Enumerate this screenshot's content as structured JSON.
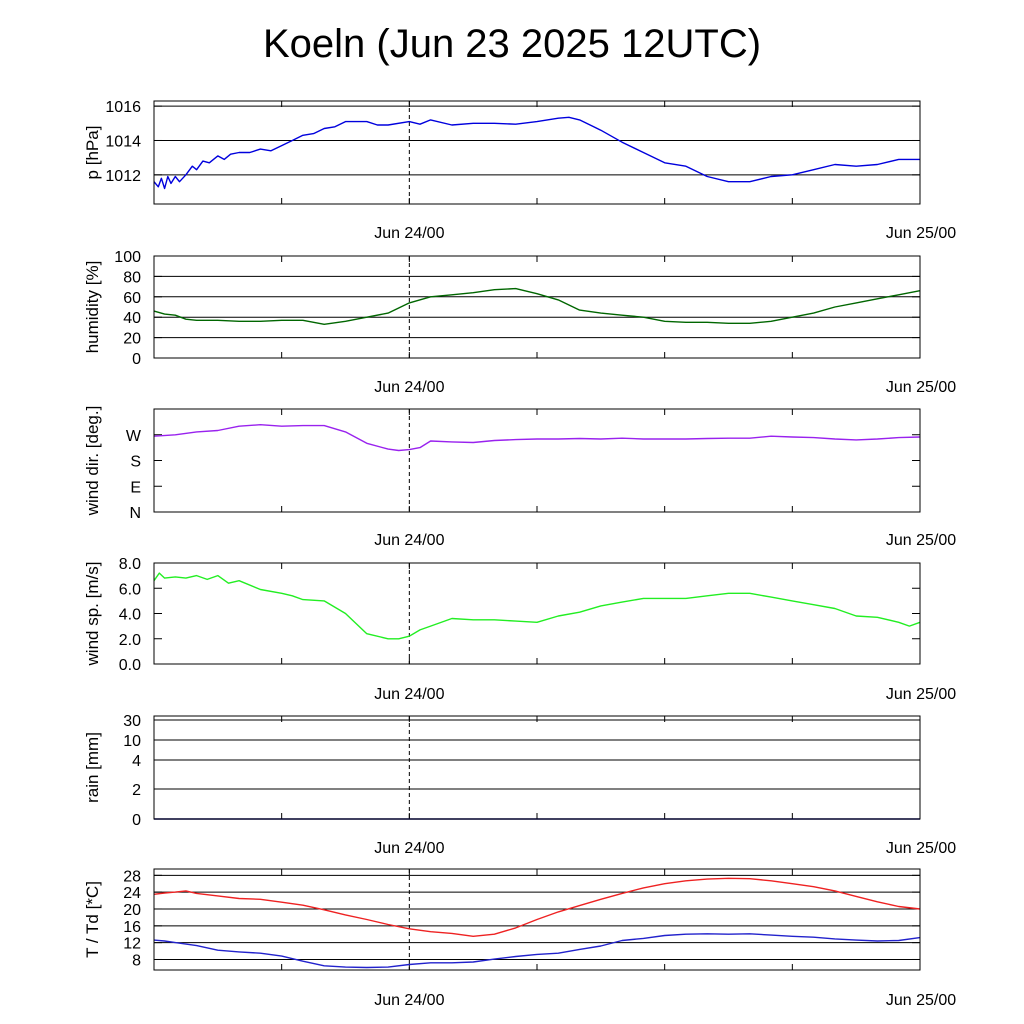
{
  "title": "Koeln (Jun 23 2025 12UTC)",
  "x_tick_labels": [
    "Jun 24/00",
    "Jun 25/00"
  ],
  "chart_data": [
    {
      "type": "line",
      "ylabel": "p [hPa]",
      "x_unit": "hours since Jun 23 12UTC",
      "xlim": [
        0,
        36
      ],
      "ylim": [
        1010.3,
        1016.3
      ],
      "yticks": [
        1012,
        1014,
        1016
      ],
      "yticklabels": [
        "1012",
        "1014",
        "1016"
      ],
      "ygrid": [
        1012,
        1014,
        1016
      ],
      "series": [
        {
          "color": "#0000dd",
          "x": [
            0,
            0.2,
            0.35,
            0.5,
            0.65,
            0.8,
            1.0,
            1.2,
            1.5,
            1.8,
            2.0,
            2.3,
            2.6,
            3.0,
            3.3,
            3.6,
            4.0,
            4.5,
            5,
            5.5,
            6,
            6.5,
            7,
            7.5,
            8,
            8.5,
            9,
            10,
            10.5,
            11,
            12,
            12.5,
            13,
            14,
            15,
            16,
            17,
            18,
            19,
            19.5,
            20,
            21,
            22,
            23,
            24,
            25,
            26,
            27,
            28,
            29,
            30,
            31,
            32,
            33,
            34,
            35,
            35.5,
            36
          ],
          "values": [
            1011.6,
            1011.3,
            1011.8,
            1011.2,
            1011.9,
            1011.5,
            1011.9,
            1011.6,
            1012.0,
            1012.5,
            1012.3,
            1012.8,
            1012.7,
            1013.1,
            1012.9,
            1013.2,
            1013.3,
            1013.3,
            1013.5,
            1013.4,
            1013.7,
            1014.0,
            1014.3,
            1014.4,
            1014.7,
            1014.8,
            1015.1,
            1015.1,
            1014.9,
            1014.9,
            1015.1,
            1014.95,
            1015.2,
            1014.9,
            1015.0,
            1015.0,
            1014.95,
            1015.1,
            1015.3,
            1015.35,
            1015.2,
            1014.6,
            1013.9,
            1013.3,
            1012.7,
            1012.5,
            1011.9,
            1011.6,
            1011.6,
            1011.9,
            1012.0,
            1012.3,
            1012.6,
            1012.5,
            1012.6,
            1012.9,
            1012.9,
            1012.9
          ]
        }
      ]
    },
    {
      "type": "line",
      "ylabel": "humidity [%]",
      "x_unit": "hours since Jun 23 12UTC",
      "xlim": [
        0,
        36
      ],
      "ylim": [
        0,
        100
      ],
      "yticks": [
        0,
        20,
        40,
        60,
        80,
        100
      ],
      "yticklabels": [
        "0",
        "20",
        "40",
        "60",
        "80",
        "100"
      ],
      "ygrid": [
        20,
        40,
        60,
        80,
        100
      ],
      "series": [
        {
          "color": "#006600",
          "x": [
            0,
            0.5,
            1,
            1.5,
            2,
            3,
            4,
            5,
            6,
            7,
            8,
            9,
            10,
            11,
            12,
            13,
            14,
            15,
            16,
            17,
            18,
            19,
            20,
            21,
            22,
            23,
            24,
            25,
            26,
            27,
            28,
            29,
            30,
            31,
            32,
            33,
            34,
            35,
            36
          ],
          "values": [
            46,
            43,
            42,
            38,
            37,
            37,
            36,
            36,
            37,
            37,
            33,
            36,
            40,
            44,
            54,
            60,
            62,
            64,
            67,
            68,
            63,
            57,
            47,
            44,
            42,
            40,
            36,
            35,
            35,
            34,
            34,
            36,
            40,
            44,
            50,
            54,
            58,
            62,
            66
          ]
        }
      ]
    },
    {
      "type": "line",
      "ylabel": "wind dir. [deg.]",
      "x_unit": "hours since Jun 23 12UTC",
      "xlim": [
        0,
        36
      ],
      "ylim": [
        0,
        360
      ],
      "yticks": [
        0,
        90,
        180,
        270
      ],
      "yticklabels": [
        "N",
        "E",
        "S",
        "W"
      ],
      "ygrid": [],
      "series": [
        {
          "color": "#9922ee",
          "x": [
            0,
            1,
            2,
            3,
            4,
            5,
            6,
            7,
            8,
            9,
            10,
            11,
            11.5,
            12,
            12.5,
            13,
            14,
            15,
            16,
            17,
            18,
            19,
            20,
            21,
            22,
            23,
            24,
            25,
            26,
            27,
            28,
            29,
            30,
            31,
            32,
            33,
            34,
            35,
            36
          ],
          "values": [
            265,
            270,
            280,
            285,
            300,
            305,
            300,
            302,
            302,
            280,
            240,
            220,
            215,
            218,
            225,
            248,
            245,
            243,
            250,
            253,
            255,
            255,
            257,
            255,
            258,
            255,
            255,
            255,
            257,
            258,
            258,
            265,
            262,
            260,
            255,
            252,
            255,
            260,
            262
          ]
        }
      ]
    },
    {
      "type": "line",
      "ylabel": "wind sp. [m/s]",
      "x_unit": "hours since Jun 23 12UTC",
      "xlim": [
        0,
        36
      ],
      "ylim": [
        0,
        8
      ],
      "yticks": [
        0,
        2,
        4,
        6,
        8
      ],
      "yticklabels": [
        "0.0",
        "2.0",
        "4.0",
        "6.0",
        "8.0"
      ],
      "ygrid": [],
      "series": [
        {
          "color": "#22ee22",
          "x": [
            0,
            0.25,
            0.5,
            1,
            1.5,
            2,
            2.5,
            3,
            3.5,
            4,
            5,
            6,
            6.5,
            7,
            8,
            9,
            10,
            11,
            11.5,
            12,
            12.5,
            13,
            14,
            15,
            16,
            17,
            18,
            19,
            20,
            21,
            22,
            23,
            24,
            25,
            26,
            27,
            28,
            29,
            30,
            31,
            32,
            33,
            34,
            35,
            35.5,
            36
          ],
          "values": [
            6.6,
            7.2,
            6.8,
            6.9,
            6.8,
            7.0,
            6.7,
            7.0,
            6.4,
            6.6,
            5.9,
            5.6,
            5.4,
            5.1,
            5.0,
            4.0,
            2.4,
            2.0,
            2.0,
            2.2,
            2.7,
            3.0,
            3.6,
            3.5,
            3.5,
            3.4,
            3.3,
            3.8,
            4.1,
            4.6,
            4.9,
            5.2,
            5.2,
            5.2,
            5.4,
            5.6,
            5.6,
            5.3,
            5.0,
            4.7,
            4.4,
            3.8,
            3.7,
            3.3,
            3.0,
            3.3
          ]
        }
      ]
    },
    {
      "type": "line",
      "ylabel": "rain [mm]",
      "x_unit": "hours since Jun 23 12UTC",
      "xlim": [
        0,
        36
      ],
      "yticks": [
        0,
        2,
        4,
        10,
        30
      ],
      "yticklabels": [
        "0",
        "2",
        "4",
        "10",
        "30"
      ],
      "ygrid": [
        0,
        2,
        4,
        10,
        30
      ],
      "series": [
        {
          "color": "#000080",
          "x": [
            0,
            36
          ],
          "values": [
            0,
            0
          ]
        }
      ]
    },
    {
      "type": "line",
      "ylabel": "T / Td [*C]",
      "x_unit": "hours since Jun 23 12UTC",
      "xlim": [
        0,
        36
      ],
      "ylim": [
        5.5,
        29.5
      ],
      "yticks": [
        8,
        12,
        16,
        20,
        24,
        28
      ],
      "yticklabels": [
        "8",
        "12",
        "16",
        "20",
        "24",
        "28"
      ],
      "ygrid": [
        8,
        12,
        16,
        20,
        24,
        28
      ],
      "series": [
        {
          "color": "#ee2222",
          "x": [
            0,
            0.5,
            1,
            1.5,
            2,
            3,
            4,
            5,
            6,
            7,
            8,
            9,
            10,
            11,
            12,
            13,
            14,
            15,
            16,
            17,
            18,
            19,
            20,
            21,
            22,
            23,
            24,
            25,
            26,
            27,
            28,
            29,
            30,
            31,
            32,
            33,
            34,
            35,
            36
          ],
          "values": [
            23.5,
            23.8,
            24.0,
            24.3,
            23.7,
            23.1,
            22.5,
            22.3,
            21.6,
            20.9,
            19.8,
            18.6,
            17.5,
            16.3,
            15.3,
            14.6,
            14.2,
            13.5,
            14.0,
            15.5,
            17.5,
            19.3,
            20.8,
            22.3,
            23.7,
            25.0,
            26.0,
            26.7,
            27.1,
            27.3,
            27.2,
            26.7,
            26.0,
            25.3,
            24.3,
            23.0,
            21.7,
            20.6,
            20.0
          ]
        },
        {
          "color": "#2222cc",
          "x": [
            0,
            0.5,
            1,
            2,
            3,
            4,
            5,
            6,
            7,
            8,
            9,
            10,
            11,
            12,
            13,
            14,
            15,
            16,
            17,
            18,
            19,
            20,
            21,
            22,
            23,
            24,
            25,
            26,
            27,
            28,
            29,
            30,
            31,
            32,
            33,
            34,
            35,
            36
          ],
          "values": [
            12.6,
            12.4,
            12.0,
            11.3,
            10.2,
            9.8,
            9.5,
            8.8,
            7.6,
            6.5,
            6.2,
            6.1,
            6.2,
            6.8,
            7.2,
            7.2,
            7.4,
            8.1,
            8.7,
            9.2,
            9.5,
            10.4,
            11.2,
            12.5,
            13.0,
            13.7,
            14.0,
            14.1,
            14.0,
            14.1,
            13.8,
            13.5,
            13.3,
            12.9,
            12.6,
            12.4,
            12.5,
            13.2
          ]
        }
      ]
    }
  ]
}
